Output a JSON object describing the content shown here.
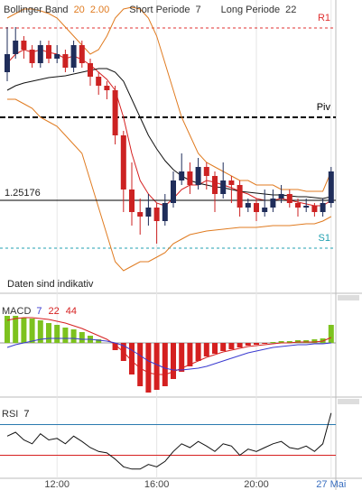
{
  "chart_data": [
    {
      "type": "candlestick",
      "categories": [
        null,
        null,
        null,
        null,
        null,
        null,
        "12:00",
        null,
        null,
        null,
        null,
        null,
        null,
        null,
        null,
        null,
        null,
        null,
        "16:00",
        null,
        null,
        null,
        null,
        null,
        null,
        null,
        null,
        null,
        null,
        null,
        "20:00",
        null,
        null,
        null,
        null,
        null,
        null,
        null,
        null,
        "27 Mai"
      ],
      "open": [
        1.2546,
        1.255,
        1.2553,
        1.2551,
        1.2548,
        1.2552,
        1.2549,
        1.255,
        1.2547,
        1.2552,
        1.2548,
        1.2545,
        1.2543,
        1.2542,
        1.2532,
        1.252,
        1.2515,
        1.2514,
        1.2516,
        1.2513,
        1.2517,
        1.2522,
        1.2524,
        1.2521,
        1.2525,
        1.2523,
        1.2519,
        1.2522,
        1.2521,
        1.2516,
        1.2517,
        1.2515,
        1.2516,
        1.2518,
        1.2519,
        1.2517,
        1.2516,
        1.25164,
        1.2515,
        1.2517
      ],
      "high": [
        1.2556,
        1.2556,
        1.2554,
        1.2552,
        1.2553,
        1.2553,
        1.2552,
        1.2551,
        1.2553,
        1.2553,
        1.2549,
        1.2546,
        1.2544,
        1.2543,
        1.2533,
        1.2526,
        1.2518,
        1.2519,
        1.2517,
        1.2519,
        1.2524,
        1.2528,
        1.2526,
        1.2527,
        1.2526,
        1.2524,
        1.2526,
        1.2523,
        1.2522,
        1.2518,
        1.2518,
        1.252,
        1.252,
        1.2521,
        1.252,
        1.2518,
        1.2518,
        1.2517,
        1.2518,
        1.2525
      ],
      "low": [
        1.2544,
        1.2549,
        1.2549,
        1.2547,
        1.2547,
        1.2548,
        1.2548,
        1.2546,
        1.2546,
        1.2547,
        1.2543,
        1.2541,
        1.254,
        1.253,
        1.2515,
        1.2512,
        1.251,
        1.2512,
        1.2508,
        1.2512,
        1.2516,
        1.2521,
        1.2519,
        1.252,
        1.252,
        1.2515,
        1.2518,
        1.2517,
        1.2514,
        1.2515,
        1.2513,
        1.2514,
        1.2515,
        1.2517,
        1.2516,
        1.2514,
        1.2515,
        1.2514,
        1.2514,
        1.2516
      ],
      "close": [
        1.255,
        1.2553,
        1.2551,
        1.2548,
        1.2552,
        1.2549,
        1.255,
        1.2547,
        1.2552,
        1.2548,
        1.2545,
        1.2543,
        1.2542,
        1.2532,
        1.252,
        1.2515,
        1.2514,
        1.2516,
        1.2513,
        1.2517,
        1.2522,
        1.2524,
        1.2521,
        1.2525,
        1.2523,
        1.2519,
        1.2522,
        1.2521,
        1.2516,
        1.2517,
        1.2515,
        1.2516,
        1.2518,
        1.2519,
        1.2517,
        1.2516,
        1.25164,
        1.2515,
        1.2517,
        1.2524
      ],
      "up_color": "#1f2d5a",
      "down_color": "#cc2222",
      "series": [
        {
          "name": "Bollinger Band",
          "params": [
            20,
            "2.00"
          ],
          "color": "#e07b20",
          "upper": [
            1.2558,
            1.2559,
            1.256,
            1.256,
            1.25596,
            1.2559,
            1.2558,
            1.2556,
            1.2554,
            1.2552,
            1.255,
            1.2551,
            1.2554,
            1.2558,
            1.256,
            1.25604,
            1.256,
            1.2558,
            1.2554,
            1.2548,
            1.2542,
            1.2536,
            1.2532,
            1.2528,
            1.2526,
            1.2525,
            1.2524,
            1.2523,
            1.2522,
            1.2522,
            1.2521,
            1.2521,
            1.2521,
            1.252,
            1.252,
            1.252,
            1.25196,
            1.25196,
            1.25196,
            1.2524
          ],
          "lower": [
            1.254,
            1.254,
            1.2539,
            1.2538,
            1.2536,
            1.2535,
            1.2534,
            1.2532,
            1.253,
            1.2528,
            1.2522,
            1.2516,
            1.251,
            1.2504,
            1.2502,
            1.2503,
            1.2504,
            1.2504,
            1.2505,
            1.2506,
            1.2508,
            1.2509,
            1.251,
            1.25104,
            1.25108,
            1.2511,
            1.25112,
            1.25114,
            1.25116,
            1.25116,
            1.25116,
            1.25118,
            1.2512,
            1.2512,
            1.2512,
            1.25122,
            1.25124,
            1.25124,
            1.2513,
            1.2514
          ]
        },
        {
          "name": "Short Periode",
          "params": [
            7
          ],
          "color": "#d62020",
          "values": [
            1.2548,
            1.255,
            1.2551,
            1.25504,
            1.2551,
            1.25504,
            1.255,
            1.2549,
            1.25496,
            1.25488,
            1.25476,
            1.2546,
            1.25444,
            1.2542,
            1.2536,
            1.2528,
            1.2522,
            1.2519,
            1.2517,
            1.25164,
            1.2518,
            1.252,
            1.2521,
            1.2521,
            1.2522,
            1.25216,
            1.2521,
            1.25204,
            1.25196,
            1.2519,
            1.2518,
            1.25176,
            1.25176,
            1.2518,
            1.25176,
            1.25172,
            1.25168,
            1.25164,
            1.25164,
            1.25176
          ]
        },
        {
          "name": "Long Periode",
          "params": [
            22
          ],
          "color": "#111111",
          "values": [
            1.2542,
            1.2543,
            1.25436,
            1.2544,
            1.25444,
            1.25448,
            1.2545,
            1.25452,
            1.25456,
            1.2546,
            1.25464,
            1.25468,
            1.25468,
            1.2546,
            1.2544,
            1.254,
            1.2536,
            1.2532,
            1.2529,
            1.25264,
            1.25244,
            1.2523,
            1.2522,
            1.25214,
            1.2521,
            1.25206,
            1.25204,
            1.252,
            1.25196,
            1.25194,
            1.25192,
            1.2519,
            1.25188,
            1.25188,
            1.25186,
            1.25184,
            1.25184,
            1.25182,
            1.2518,
            1.25184
          ]
        }
      ],
      "levels": [
        {
          "label": "R1",
          "value": 1.25558,
          "color": "#e03030"
        },
        {
          "label": "Piv",
          "value": 1.2536,
          "color": "#000000"
        },
        {
          "label": "S1",
          "value": 1.2507,
          "color": "#20a0b0"
        }
      ],
      "price_line": 1.25176,
      "note": "Daten sind indikativ",
      "ylim": [
        1.2498,
        1.2562
      ]
    },
    {
      "type": "macd",
      "name": "MACD",
      "params": [
        7,
        22,
        44
      ],
      "param_colors": [
        "#3a3ad0",
        "#d62020",
        "#d62020"
      ],
      "histogram": [
        30,
        30,
        28,
        27,
        25,
        22,
        20,
        17,
        15,
        12,
        8,
        4,
        0,
        -8,
        -20,
        -35,
        -48,
        -55,
        -52,
        -48,
        -40,
        -32,
        -26,
        -20,
        -15,
        -12,
        -9,
        -7,
        -5,
        -3,
        -2,
        -1,
        1,
        2,
        2,
        3,
        3,
        4,
        5,
        20
      ],
      "pos_color": "#7dc21e",
      "neg_color": "#d42020",
      "series": [
        {
          "color": "#d62020",
          "values": [
            25,
            27,
            28,
            28,
            27,
            26,
            24,
            22,
            19,
            16,
            12,
            8,
            4,
            -2,
            -10,
            -20,
            -28,
            -33,
            -35,
            -35,
            -32,
            -28,
            -24,
            -20,
            -16,
            -13,
            -10,
            -8,
            -6,
            -4,
            -3,
            -2,
            -1,
            0,
            0,
            1,
            1,
            1,
            2,
            6
          ]
        },
        {
          "color": "#3a3ad0",
          "values": [
            -5,
            -2,
            0,
            2,
            4,
            5,
            5,
            5,
            5,
            4,
            4,
            3,
            2,
            0,
            -3,
            -8,
            -14,
            -20,
            -24,
            -28,
            -30,
            -30,
            -29,
            -28,
            -26,
            -23,
            -20,
            -17,
            -14,
            -11,
            -9,
            -7,
            -5,
            -4,
            -3,
            -2,
            -2,
            -1,
            -1,
            0
          ]
        }
      ],
      "ylim": [
        -60,
        50
      ]
    },
    {
      "type": "line",
      "name": "RSI",
      "params": [
        7
      ],
      "color": "#111111",
      "values": [
        55,
        60,
        50,
        45,
        58,
        50,
        52,
        45,
        55,
        48,
        40,
        35,
        33,
        25,
        15,
        12,
        12,
        18,
        15,
        22,
        35,
        45,
        40,
        48,
        42,
        35,
        45,
        42,
        30,
        38,
        35,
        40,
        45,
        48,
        40,
        38,
        42,
        35,
        45,
        85
      ],
      "levels": [
        {
          "value": 70,
          "color": "#2a7ab0"
        },
        {
          "value": 30,
          "color": "#d62020"
        }
      ],
      "ylim": [
        0,
        100
      ]
    }
  ]
}
